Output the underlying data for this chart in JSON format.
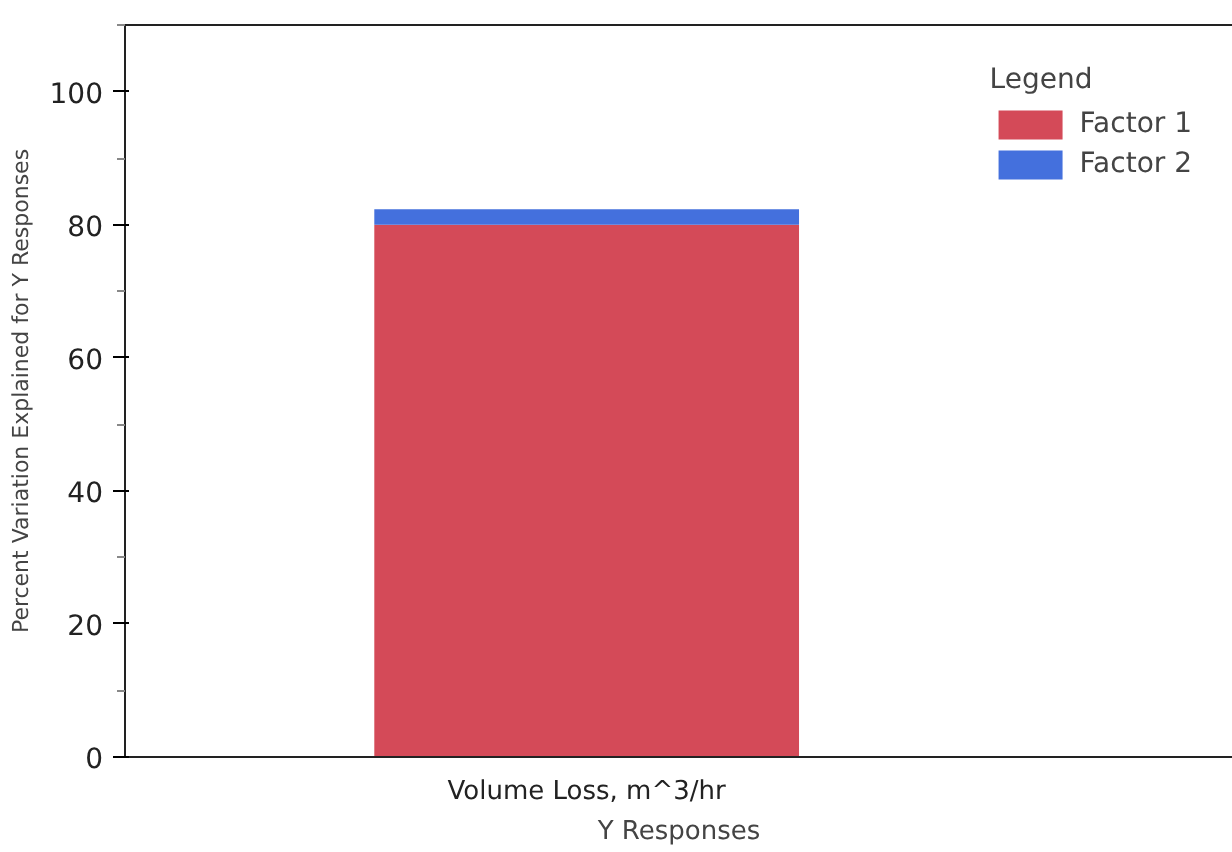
{
  "chart_data": {
    "type": "bar",
    "stacked": true,
    "xlabel": "Y Responses",
    "ylabel": "Percent Variation Explained for Y Responses",
    "legend_title": "Legend",
    "legend": "top right",
    "categories": [
      "Volume Loss, m^3/hr"
    ],
    "series": [
      {
        "name": "Factor 1",
        "color": "#d44a58",
        "values": [
          80
        ]
      },
      {
        "name": "Factor 2",
        "color": "#4470dd",
        "values": [
          2.3
        ]
      }
    ],
    "ylim": [
      0,
      110
    ],
    "yticks": [
      0,
      20,
      40,
      60,
      80,
      100
    ],
    "grid": false
  }
}
